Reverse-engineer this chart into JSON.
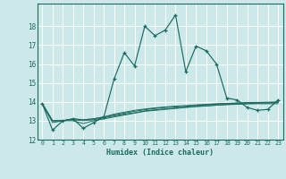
{
  "xlabel": "Humidex (Indice chaleur)",
  "bg_color": "#cce8e8",
  "line_color": "#1a6b60",
  "xlim": [
    -0.5,
    23.5
  ],
  "ylim": [
    12,
    19.2
  ],
  "yticks": [
    12,
    13,
    14,
    15,
    16,
    17,
    18
  ],
  "xticks": [
    0,
    1,
    2,
    3,
    4,
    5,
    6,
    7,
    8,
    9,
    10,
    11,
    12,
    13,
    14,
    15,
    16,
    17,
    18,
    19,
    20,
    21,
    22,
    23
  ],
  "s1x": [
    0,
    1,
    2,
    3,
    4,
    5,
    6,
    7,
    8,
    9,
    10,
    11,
    12,
    13,
    14,
    15,
    16,
    17,
    18,
    19,
    20,
    21,
    22,
    23
  ],
  "s1y": [
    13.9,
    12.5,
    13.0,
    13.1,
    12.6,
    12.9,
    13.2,
    15.2,
    16.6,
    15.9,
    18.0,
    17.5,
    17.8,
    18.6,
    15.6,
    16.95,
    16.7,
    16.0,
    14.2,
    14.1,
    13.7,
    13.55,
    13.6,
    14.1
  ],
  "s2x": [
    0,
    1,
    2,
    3,
    4,
    5,
    6,
    7,
    8,
    9,
    10,
    11,
    12,
    13,
    14,
    15,
    16,
    17,
    18,
    19,
    20,
    21,
    22,
    23
  ],
  "s2y": [
    13.9,
    12.9,
    13.0,
    13.0,
    12.85,
    13.0,
    13.1,
    13.2,
    13.3,
    13.4,
    13.5,
    13.55,
    13.6,
    13.65,
    13.7,
    13.75,
    13.78,
    13.82,
    13.85,
    13.87,
    13.89,
    13.9,
    13.9,
    13.9
  ],
  "s3x": [
    0,
    1,
    2,
    3,
    4,
    5,
    6,
    7,
    8,
    9,
    10,
    11,
    12,
    13,
    14,
    15,
    16,
    17,
    18,
    19,
    20,
    21,
    22,
    23
  ],
  "s3y": [
    13.9,
    13.0,
    13.0,
    13.1,
    13.05,
    13.1,
    13.2,
    13.3,
    13.4,
    13.5,
    13.58,
    13.65,
    13.7,
    13.73,
    13.77,
    13.81,
    13.84,
    13.88,
    13.9,
    13.93,
    13.95,
    13.95,
    13.95,
    13.97
  ],
  "s4x": [
    0,
    1,
    2,
    3,
    4,
    5,
    6,
    7,
    8,
    9,
    10,
    11,
    12,
    13,
    14,
    15,
    16,
    17,
    18,
    19,
    20,
    21,
    22,
    23
  ],
  "s4y": [
    13.9,
    13.0,
    13.0,
    13.1,
    13.05,
    13.1,
    13.2,
    13.35,
    13.45,
    13.55,
    13.62,
    13.68,
    13.73,
    13.77,
    13.8,
    13.84,
    13.87,
    13.9,
    13.92,
    13.94,
    13.96,
    13.97,
    13.98,
    14.0
  ],
  "s5x": [
    0,
    1,
    2,
    3,
    4,
    5,
    6,
    7,
    8,
    9,
    10,
    11,
    12,
    13,
    14,
    15,
    16,
    17,
    18,
    19,
    20,
    21,
    22,
    23
  ],
  "s5y": [
    13.9,
    13.0,
    13.0,
    13.05,
    13.0,
    13.05,
    13.15,
    13.25,
    13.35,
    13.42,
    13.52,
    13.58,
    13.63,
    13.67,
    13.72,
    13.76,
    13.79,
    13.83,
    13.86,
    13.89,
    13.91,
    13.93,
    13.94,
    13.96
  ]
}
